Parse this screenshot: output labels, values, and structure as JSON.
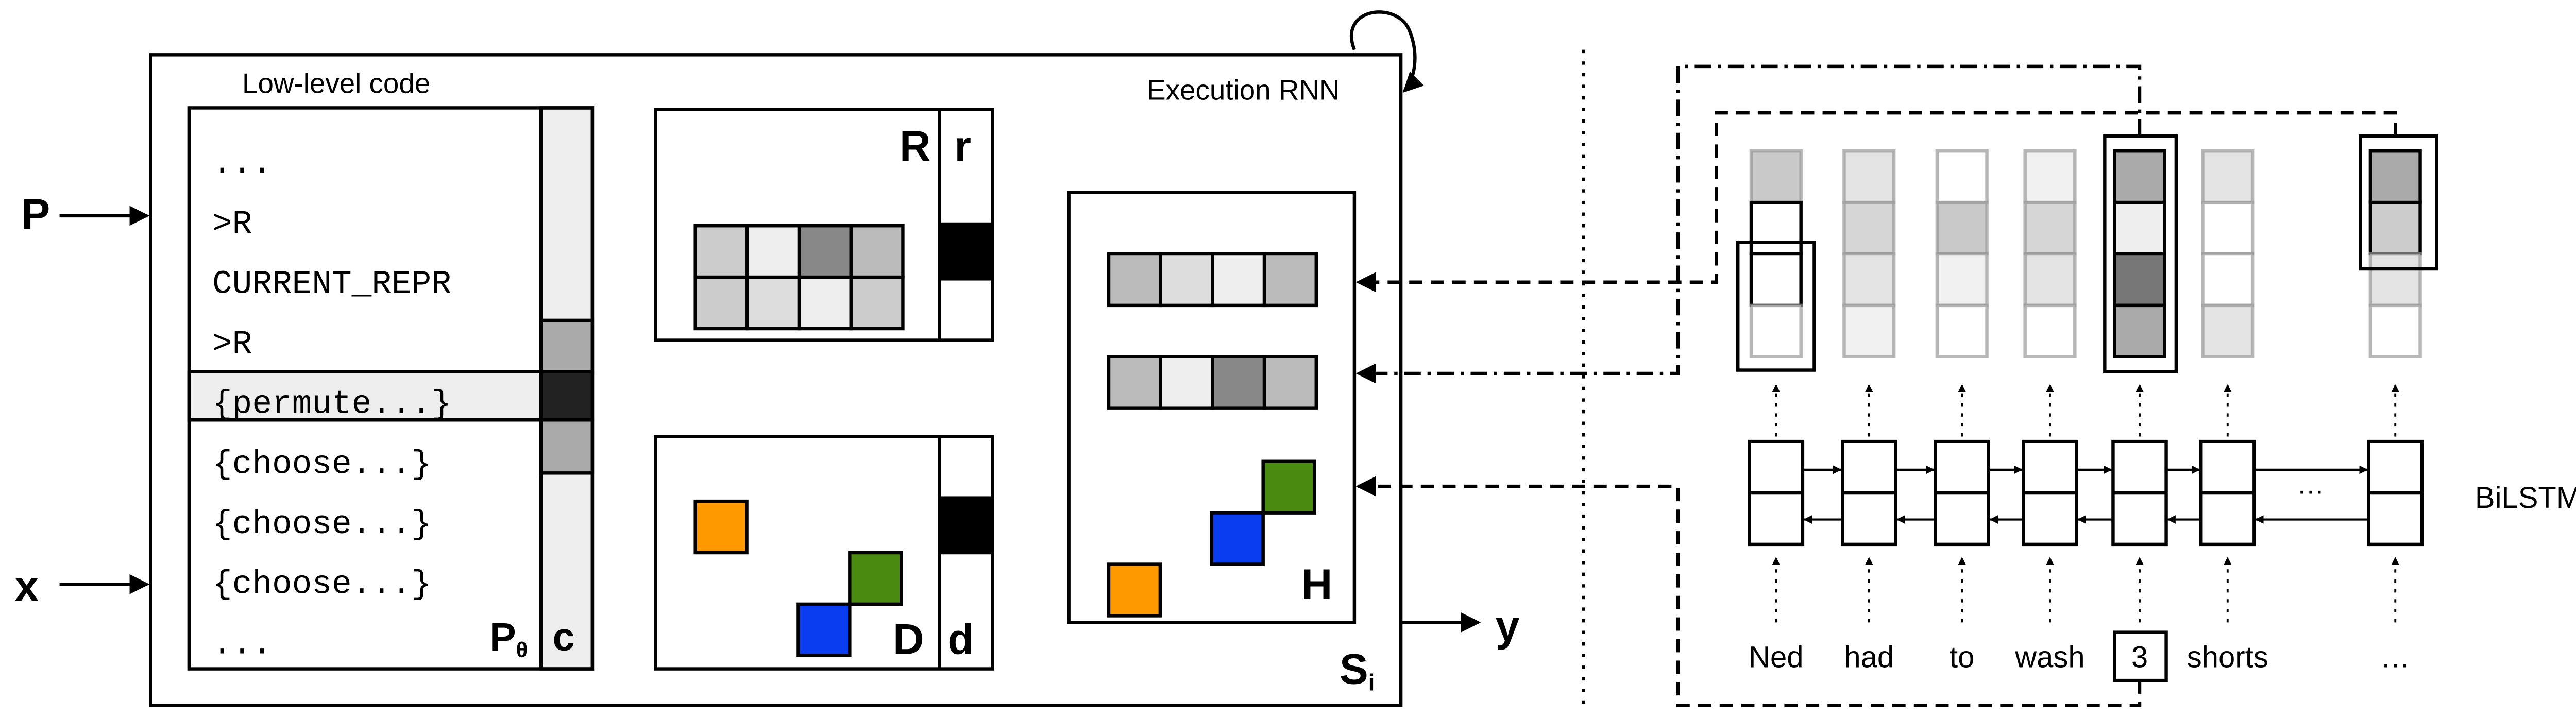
{
  "inputs": {
    "program": "P",
    "input": "x"
  },
  "memory": {
    "title": "Low-level code",
    "lines": [
      "...",
      ">R",
      "CURRENT_REPR",
      ">R",
      "{permute...}",
      "{choose...}",
      "{choose...}",
      "{choose...}",
      "..."
    ],
    "label": {
      "base": "P",
      "sub": "θ"
    },
    "pointer": "c"
  },
  "execution": {
    "title": "Execution RNN",
    "r_label": "R",
    "r_pointer": "r",
    "d_label": "D",
    "d_pointer": "d",
    "h_label": "H",
    "state": {
      "base": "S",
      "sub": "i"
    },
    "output": "y"
  },
  "encoder": {
    "words": [
      "Ned",
      "had",
      "to",
      "wash",
      "3",
      "shorts",
      "…"
    ],
    "ellipsis": "···",
    "label": "BiLSTM"
  }
}
